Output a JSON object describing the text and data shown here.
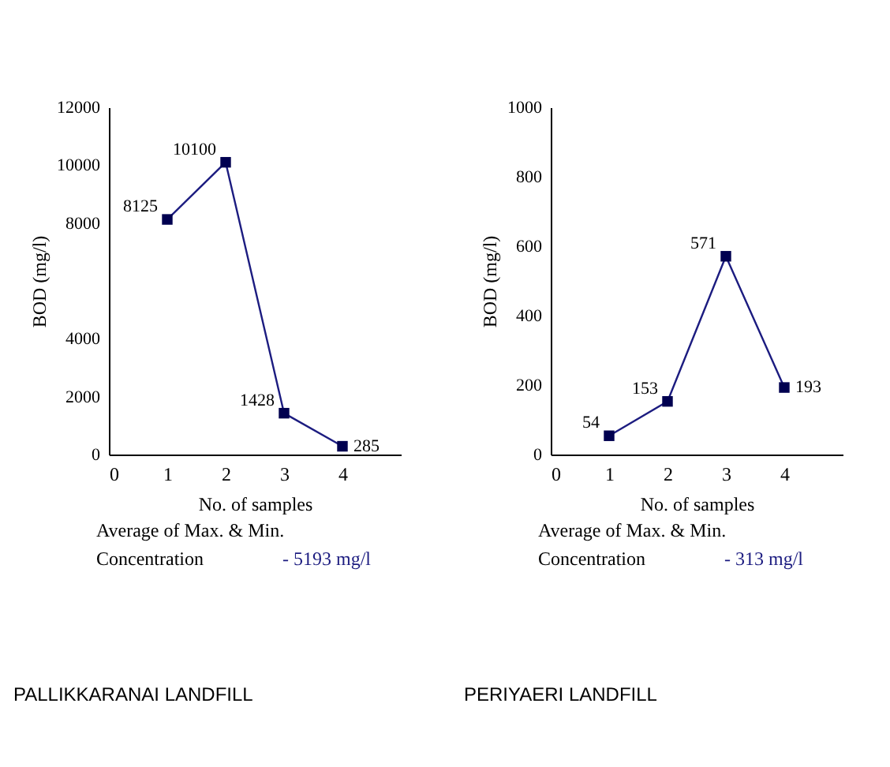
{
  "chart_data": [
    {
      "type": "line",
      "title": "PALLIKKARANAI  LANDFILL",
      "xlabel": "No. of  samples",
      "ylabel": "BOD (mg/l)",
      "x": [
        1,
        2,
        3,
        4
      ],
      "values": [
        8125,
        10100,
        1428,
        285
      ],
      "color": "#1c1c80",
      "xlim": [
        0,
        5
      ],
      "xticks": [
        0,
        1,
        2,
        3,
        4
      ],
      "ylim": [
        0,
        12000
      ],
      "yticks": [
        0,
        {
          "value": 2000,
          "label": "2000"
        },
        {
          "value": 4000,
          "label": "4000"
        },
        {
          "value": 8000,
          "label": "8000"
        },
        {
          "value": 10000,
          "label": "10000"
        },
        {
          "value": 12000,
          "label": "12000"
        }
      ],
      "marker": "square",
      "data_labels": true,
      "annotations": [
        "Average of Max. & Min.",
        "Concentration",
        "- 5193 mg/l"
      ]
    },
    {
      "type": "line",
      "title": "PERIYAERI  LANDFILL",
      "xlabel": "No. of  samples",
      "ylabel": "BOD (mg/l)",
      "x": [
        1,
        2,
        3,
        4
      ],
      "values": [
        54,
        153,
        571,
        193
      ],
      "color": "#1c1c80",
      "xlim": [
        0,
        5
      ],
      "xticks": [
        0,
        1,
        2,
        3,
        4
      ],
      "ylim": [
        0,
        1000
      ],
      "yticks": [
        0,
        200,
        400,
        600,
        800,
        {
          "value": 1000,
          "label": "1000"
        }
      ],
      "marker": "square",
      "data_labels": true,
      "annotations": [
        "Average of Max. & Min.",
        "Concentration",
        "- 313 mg/l"
      ]
    }
  ]
}
